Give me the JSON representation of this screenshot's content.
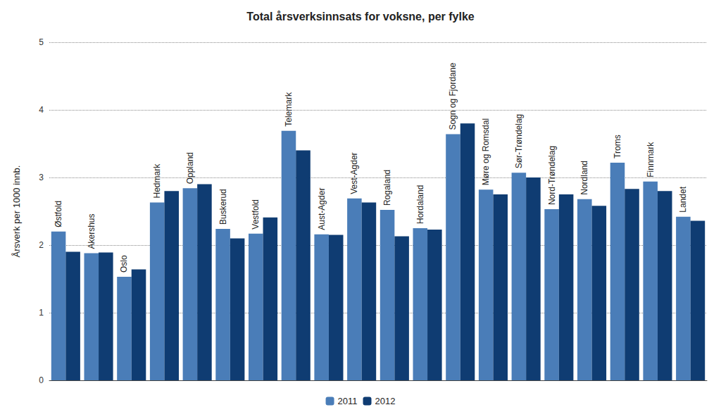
{
  "chart_data": {
    "type": "bar",
    "title": "Total årsverksinnsats for voksne, per fylke",
    "y_label": "Årsverk per 1000 innb.",
    "categories": [
      "Østfold",
      "Akershus",
      "Oslo",
      "Hedmark",
      "Oppland",
      "Buskerud",
      "Vestfold",
      "Telemark",
      "Aust-Agder",
      "Vest-Agder",
      "Rogaland",
      "Hordaland",
      "Sogn og Fjordane",
      "Møre og Romsdal",
      "Sør-Trøndelag",
      "Nord-Trøndelag",
      "Nordland",
      "Troms",
      "Finnmark",
      "Landet"
    ],
    "series": [
      {
        "name": "2011",
        "color": "#4a7db8",
        "values": [
          2.2,
          1.88,
          1.53,
          2.63,
          2.84,
          2.24,
          2.17,
          3.69,
          2.16,
          2.69,
          2.52,
          2.25,
          3.64,
          2.82,
          3.07,
          2.53,
          2.68,
          3.22,
          2.94,
          2.42
        ]
      },
      {
        "name": "2012",
        "color": "#0f3c72",
        "values": [
          1.9,
          1.89,
          1.64,
          2.8,
          2.9,
          2.1,
          2.41,
          3.4,
          2.15,
          2.63,
          2.13,
          2.23,
          3.8,
          2.75,
          3.0,
          2.75,
          2.58,
          2.83,
          2.8,
          2.36
        ]
      }
    ],
    "ylim": [
      0,
      5
    ],
    "yticks": [
      0,
      1,
      2,
      3,
      4,
      5
    ],
    "grid": true,
    "legend": "bottom"
  }
}
